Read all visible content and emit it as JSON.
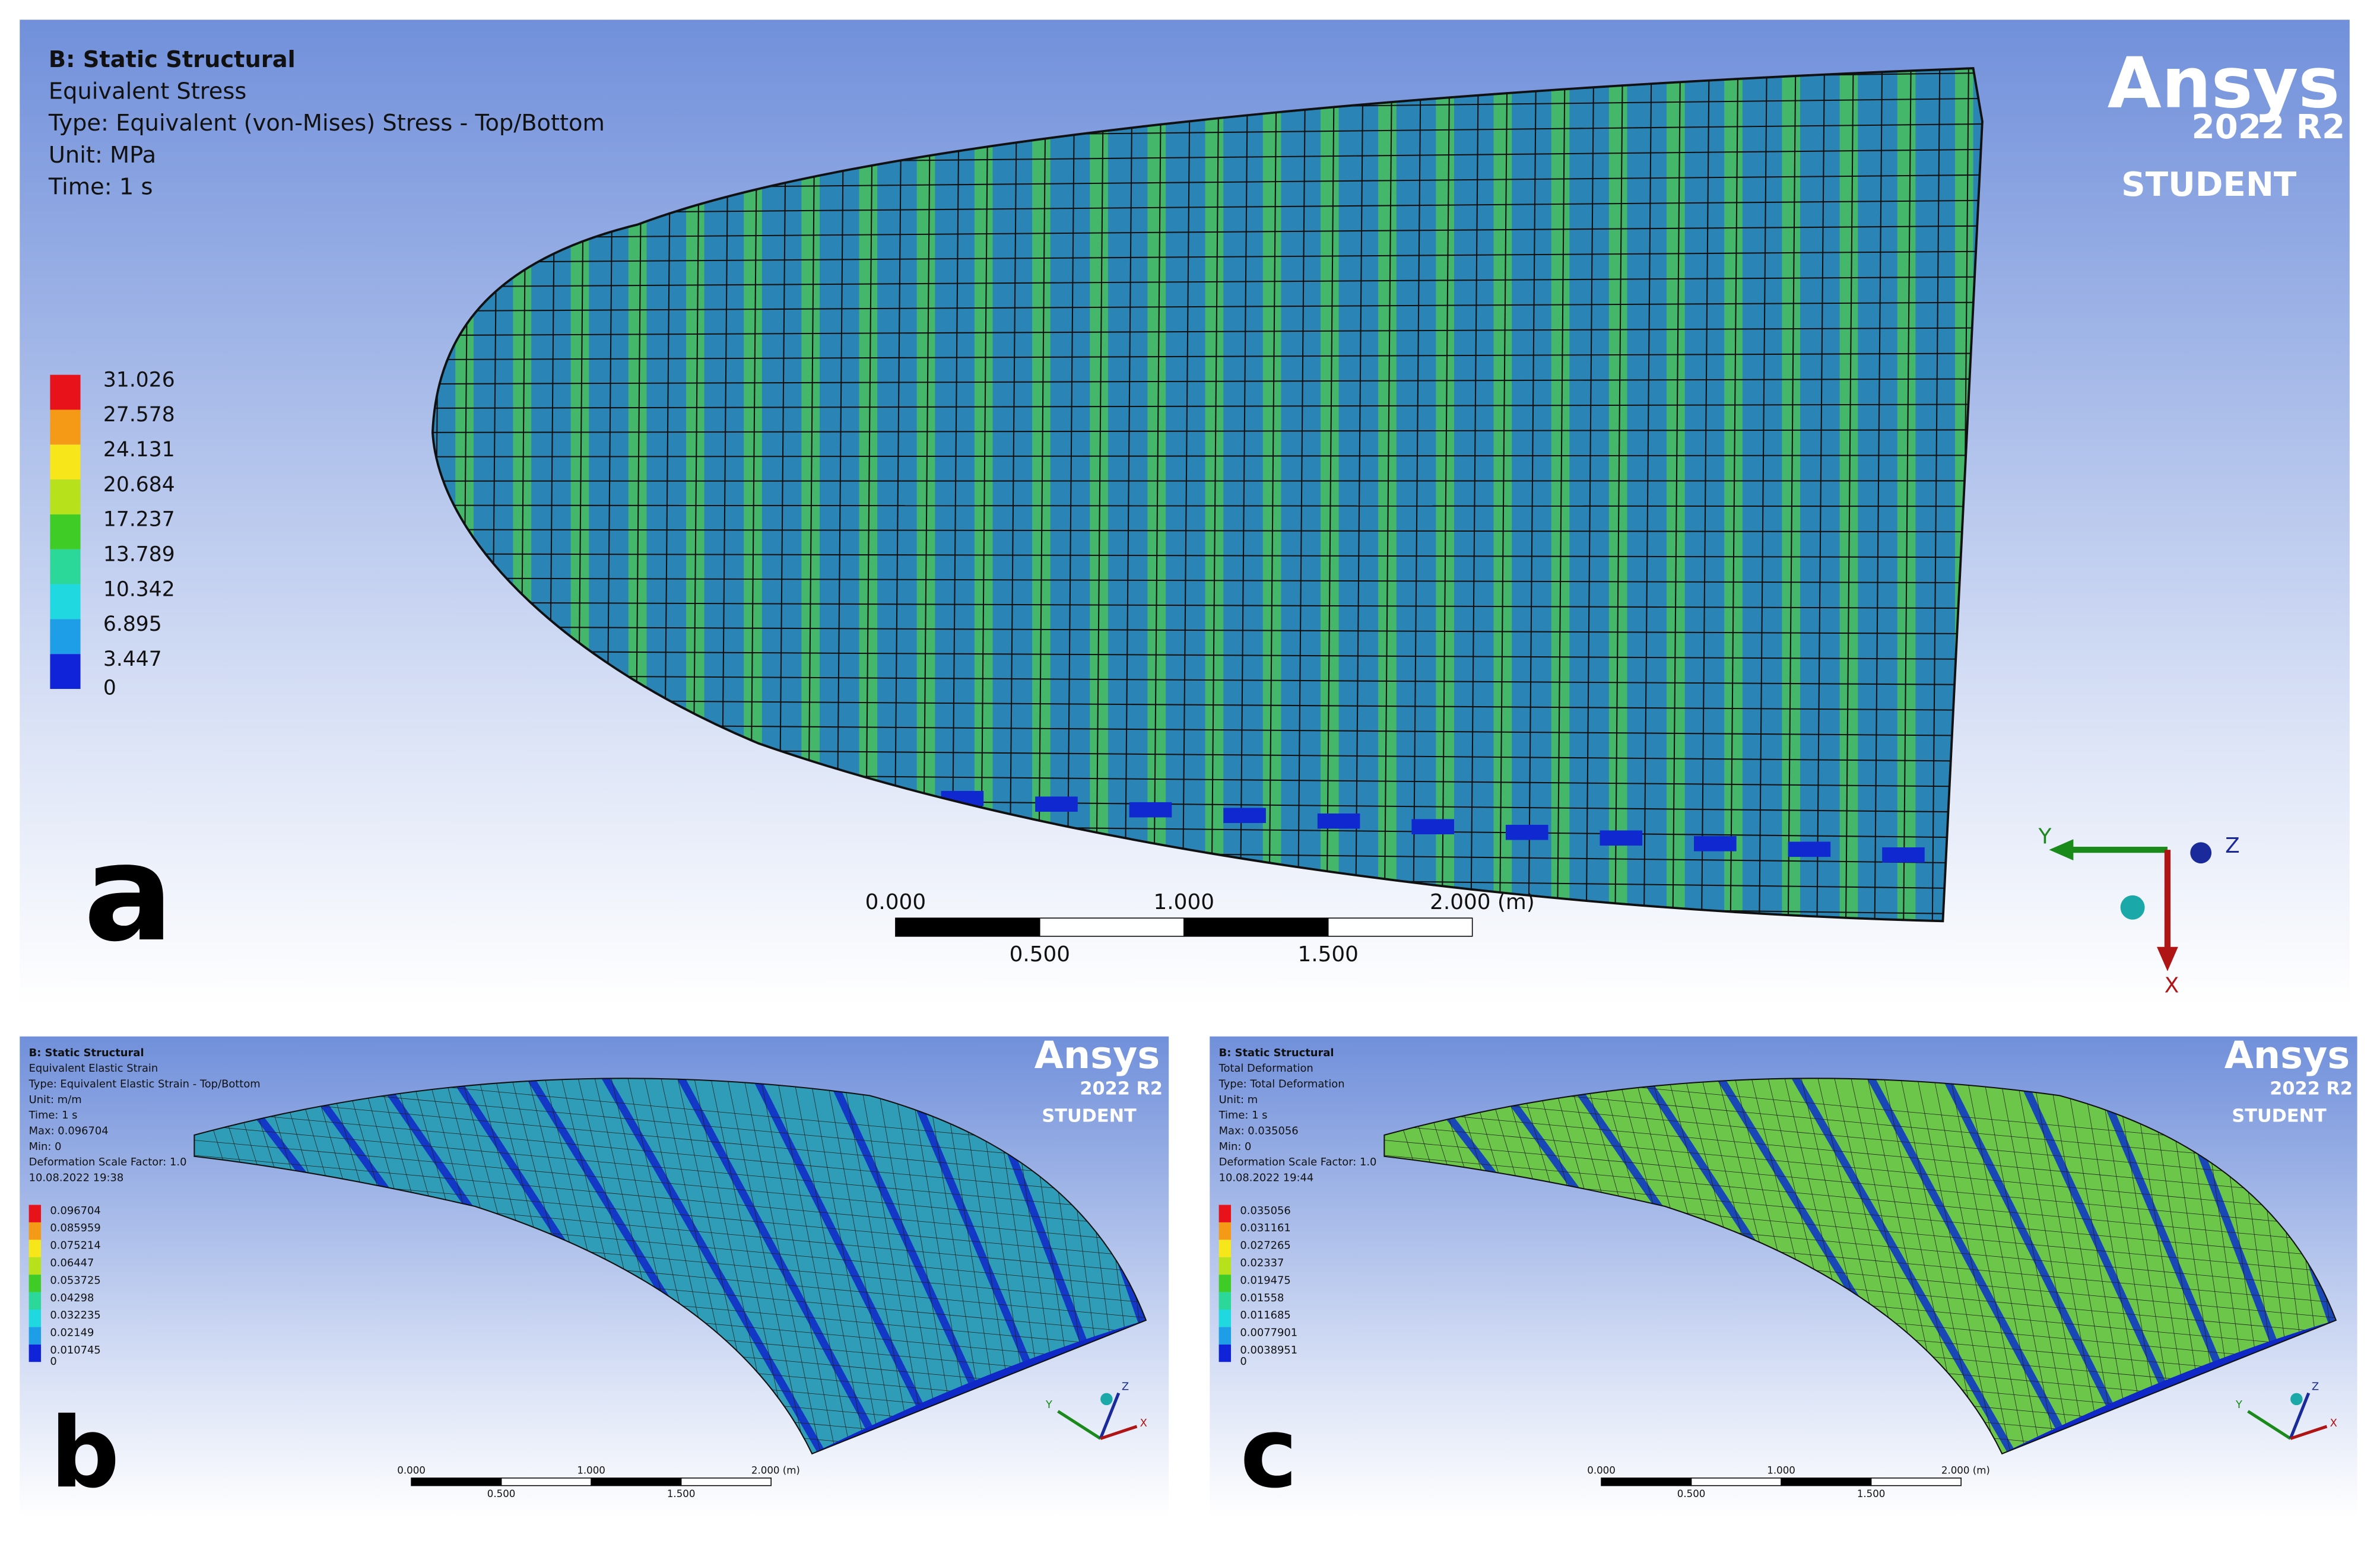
{
  "panels": [
    {
      "letter": "a",
      "header": [
        "B: Static Structural",
        "Equivalent Stress",
        "Type: Equivalent (von-Mises) Stress - Top/Bottom",
        "Unit: MPa",
        "Time: 1 s"
      ],
      "legend": [
        "31.026",
        "27.578",
        "24.131",
        "20.684",
        "17.237",
        "13.789",
        "10.342",
        "6.895",
        "3.447",
        "0"
      ],
      "scale": {
        "top": [
          "0.000",
          "1.000",
          "2.000 (m)"
        ],
        "bottom": [
          "0.500",
          "1.500"
        ]
      },
      "logo": {
        "brand": "Ansys",
        "version": "2022 R2",
        "edition": "STUDENT"
      },
      "axes": [
        "Y",
        "Z",
        "X"
      ]
    },
    {
      "letter": "b",
      "header": [
        "B: Static Structural",
        "Equivalent Elastic Strain",
        "Type: Equivalent Elastic Strain - Top/Bottom",
        "Unit: m/m",
        "Time: 1 s",
        "Max: 0.096704",
        "Min: 0",
        "Deformation Scale Factor: 1.0",
        "10.08.2022 19:38"
      ],
      "legend": [
        "0.096704",
        "0.085959",
        "0.075214",
        "0.06447",
        "0.053725",
        "0.04298",
        "0.032235",
        "0.02149",
        "0.010745",
        "0"
      ],
      "scale": {
        "top": [
          "0.000",
          "1.000",
          "2.000 (m)"
        ],
        "bottom": [
          "0.500",
          "1.500"
        ]
      },
      "logo": {
        "brand": "Ansys",
        "version": "2022 R2",
        "edition": "STUDENT"
      },
      "axes": [
        "Y",
        "Z",
        "X"
      ]
    },
    {
      "letter": "c",
      "header": [
        "B: Static Structural",
        "Total Deformation",
        "Type: Total Deformation",
        "Unit: m",
        "Time: 1 s",
        "Max: 0.035056",
        "Min: 0",
        "Deformation Scale Factor: 1.0",
        "10.08.2022 19:44"
      ],
      "legend": [
        "0.035056",
        "0.031161",
        "0.027265",
        "0.02337",
        "0.019475",
        "0.01558",
        "0.011685",
        "0.0077901",
        "0.0038951",
        "0"
      ],
      "scale": {
        "top": [
          "0.000",
          "1.000",
          "2.000 (m)"
        ],
        "bottom": [
          "0.500",
          "1.500"
        ]
      },
      "logo": {
        "brand": "Ansys",
        "version": "2022 R2",
        "edition": "STUDENT"
      },
      "axes": [
        "Y",
        "Z",
        "X"
      ]
    }
  ]
}
